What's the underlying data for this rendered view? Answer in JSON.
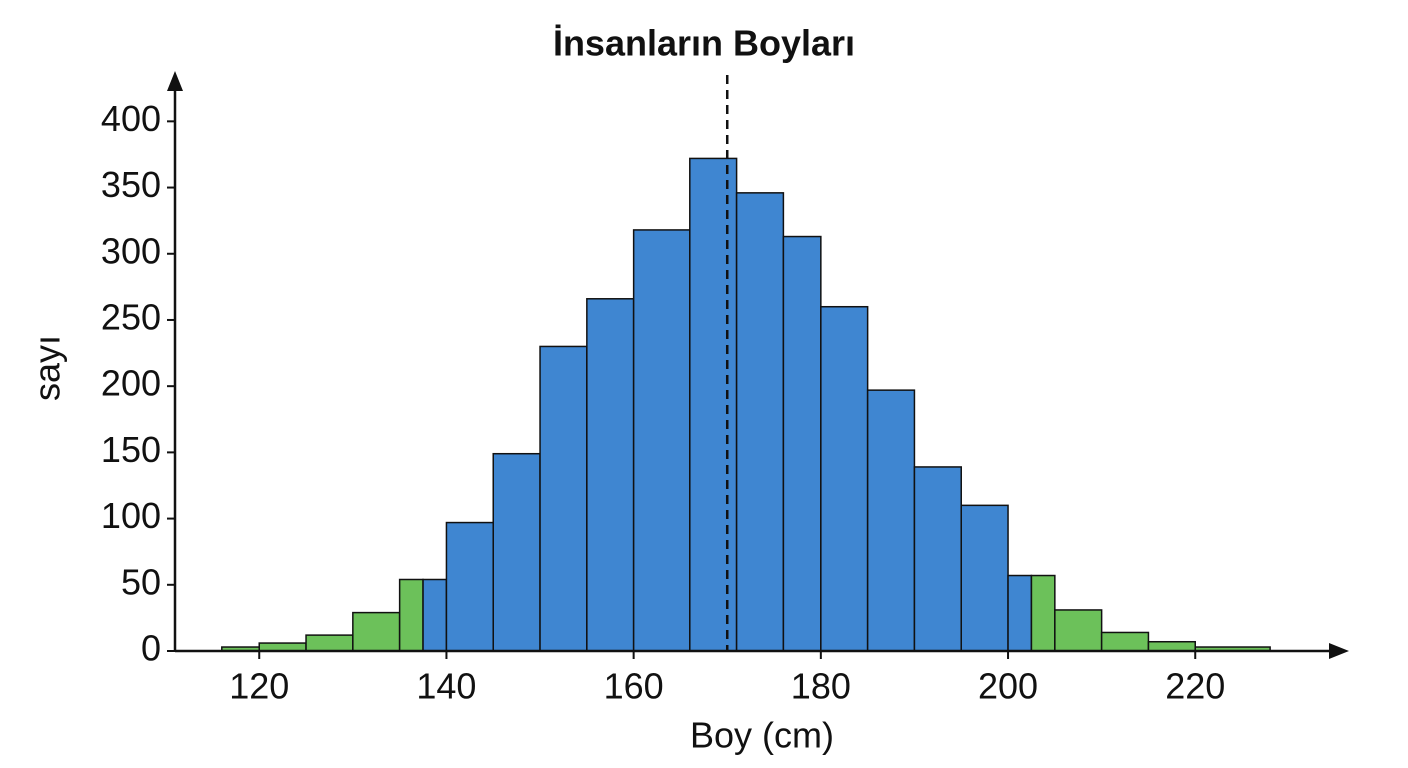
{
  "chart_data": {
    "type": "histogram",
    "title": "İnsanların Boyları",
    "x_label": "Boy (cm)",
    "y_label": "sayı",
    "bins": [
      116,
      120,
      125,
      130,
      135,
      137.5,
      140,
      145,
      150,
      155,
      160,
      166,
      171,
      176,
      180,
      185,
      190,
      195,
      200,
      202.5,
      205,
      210,
      215,
      220,
      228
    ],
    "values": [
      3,
      6,
      12,
      29,
      54,
      54,
      97,
      149,
      230,
      266,
      318,
      372,
      346,
      313,
      260,
      197,
      139,
      110,
      57,
      57,
      31,
      14,
      7,
      3
    ],
    "colors": [
      "#6cc15a",
      "#6cc15a",
      "#6cc15a",
      "#6cc15a",
      "#6cc15a",
      "#3f86d1",
      "#3f86d1",
      "#3f86d1",
      "#3f86d1",
      "#3f86d1",
      "#3f86d1",
      "#3f86d1",
      "#3f86d1",
      "#3f86d1",
      "#3f86d1",
      "#3f86d1",
      "#3f86d1",
      "#3f86d1",
      "#3f86d1",
      "#6cc15a",
      "#6cc15a",
      "#6cc15a",
      "#6cc15a",
      "#6cc15a"
    ],
    "mean_line": 170,
    "xlim": [
      111,
      236
    ],
    "ylim": [
      0,
      435
    ],
    "xticks": [
      120,
      140,
      160,
      180,
      200,
      220
    ],
    "yticks": [
      0,
      50,
      100,
      150,
      200,
      250,
      300,
      350,
      400
    ]
  }
}
